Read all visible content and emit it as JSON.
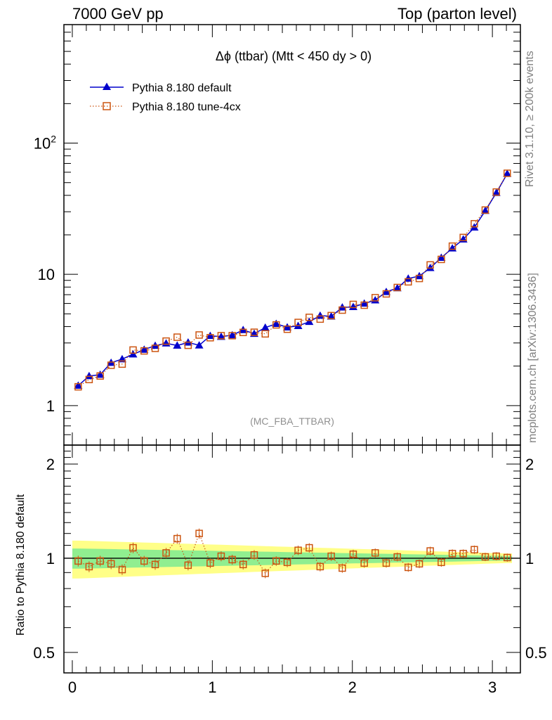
{
  "header": {
    "left": "7000 GeV pp",
    "right": "Top (parton level)"
  },
  "side_labels": {
    "rivet": "Rivet 3.1.10, ≥ 200k events",
    "mcplots": "mcplots.cern.ch [arXiv:1306.3436]"
  },
  "colors": {
    "default": "#0000cc",
    "tune": "#cc5511",
    "band_inner": "#90ee90",
    "band_outer": "#ffff88"
  },
  "chart_data": [
    {
      "type": "line",
      "title": "Δϕ (ttbar) (Mtt < 450 dy > 0)",
      "annotation": "(MC_FBA_TTBAR)",
      "yscale": "log",
      "ylim": [
        0.5,
        800
      ],
      "xlim": [
        -0.06,
        3.2
      ],
      "yticks": [
        "1",
        "10",
        "10^2"
      ],
      "legend_position": "top-left",
      "x": [
        0.042,
        0.12,
        0.199,
        0.277,
        0.356,
        0.434,
        0.513,
        0.592,
        0.67,
        0.749,
        0.827,
        0.906,
        0.985,
        1.063,
        1.142,
        1.22,
        1.299,
        1.378,
        1.456,
        1.535,
        1.613,
        1.692,
        1.77,
        1.849,
        1.928,
        2.006,
        2.085,
        2.163,
        2.242,
        2.321,
        2.399,
        2.478,
        2.556,
        2.635,
        2.714,
        2.792,
        2.871,
        2.949,
        3.028,
        3.106
      ],
      "series": [
        {
          "name": "Pythia 8.180 default",
          "values": [
            1.42,
            1.68,
            1.72,
            2.12,
            2.26,
            2.46,
            2.67,
            2.86,
            2.98,
            2.87,
            3.03,
            2.88,
            3.4,
            3.35,
            3.44,
            3.77,
            3.53,
            3.93,
            4.2,
            3.95,
            4.05,
            4.35,
            4.85,
            4.78,
            5.6,
            5.65,
            6.0,
            6.35,
            7.35,
            7.85,
            9.3,
            9.7,
            11.2,
            13.4,
            15.8,
            18.5,
            22.8,
            30.5,
            41.8,
            58.5
          ]
        },
        {
          "name": "Pythia 8.180 tune-4cx",
          "values": [
            1.39,
            1.58,
            1.68,
            2.03,
            2.07,
            2.65,
            2.61,
            2.73,
            3.1,
            3.32,
            2.88,
            3.45,
            3.29,
            3.41,
            3.41,
            3.61,
            3.62,
            3.52,
            4.12,
            3.82,
            4.3,
            4.7,
            4.56,
            4.85,
            5.34,
            5.9,
            5.82,
            6.64,
            7.1,
            7.94,
            8.77,
            9.3,
            11.8,
            13.0,
            16.4,
            19.1,
            24.3,
            30.9,
            42.4,
            58.9
          ]
        }
      ]
    },
    {
      "type": "line",
      "ylabel": "Ratio to Pythia 8.180 default",
      "yscale": "log",
      "ylim": [
        0.43,
        2.3
      ],
      "xlim": [
        -0.06,
        3.2
      ],
      "yticks": [
        "0.5",
        "1",
        "2"
      ],
      "xticks": [
        "0",
        "1",
        "2",
        "3"
      ],
      "x": [
        0.042,
        0.12,
        0.199,
        0.277,
        0.356,
        0.434,
        0.513,
        0.592,
        0.67,
        0.749,
        0.827,
        0.906,
        0.985,
        1.063,
        1.142,
        1.22,
        1.299,
        1.378,
        1.456,
        1.535,
        1.613,
        1.692,
        1.77,
        1.849,
        1.928,
        2.006,
        2.085,
        2.163,
        2.242,
        2.321,
        2.399,
        2.478,
        2.556,
        2.635,
        2.714,
        2.792,
        2.871,
        2.949,
        3.028,
        3.106
      ],
      "series": [
        {
          "name": "Pythia 8.180 tune-4cx",
          "values": [
            0.98,
            0.94,
            0.98,
            0.96,
            0.92,
            1.08,
            0.98,
            0.955,
            1.04,
            1.155,
            0.95,
            1.2,
            0.965,
            1.015,
            0.99,
            0.955,
            1.025,
            0.895,
            0.98,
            0.97,
            1.06,
            1.08,
            0.94,
            1.015,
            0.93,
            1.03,
            0.965,
            1.04,
            0.965,
            1.01,
            0.935,
            0.96,
            1.055,
            0.97,
            1.035,
            1.035,
            1.065,
            1.01,
            1.015,
            1.005
          ]
        }
      ]
    }
  ]
}
